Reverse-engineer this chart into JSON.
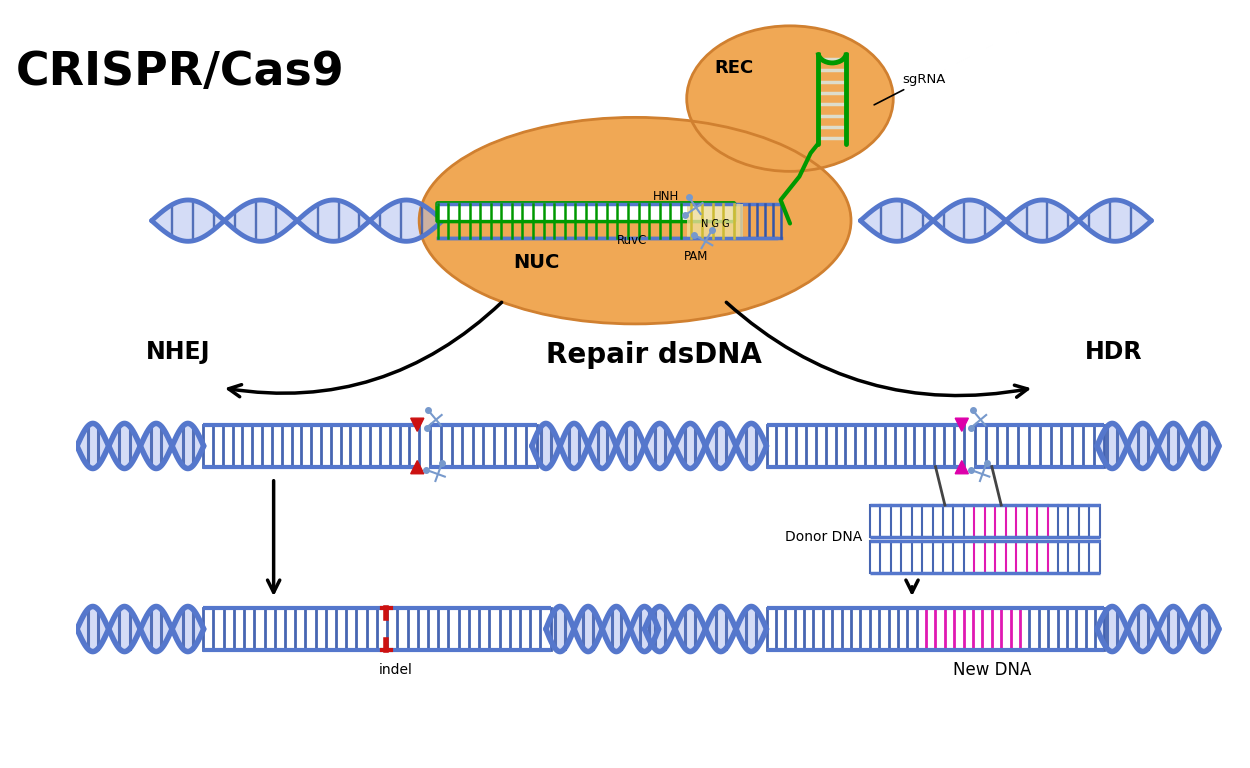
{
  "title": "CRISPR/Cas9",
  "bg_color": "#ffffff",
  "dna_color": "#5577cc",
  "dna_color2": "#3355aa",
  "dna_fill": "#aabbee",
  "green_color": "#009900",
  "orange_body": "#f0a855",
  "orange_edge": "#d08030",
  "magenta_color": "#dd00aa",
  "red_color": "#cc1111",
  "scissors_color": "#7799cc",
  "yellow_color": "#ccbb33",
  "donor_bg": "#aabbee",
  "label_nhej": "NHEJ",
  "label_hdr": "HDR",
  "label_repair": "Repair dsDNA",
  "label_indel": "indel",
  "label_newdna": "New DNA",
  "label_donor": "Donor DNA",
  "label_nuc": "NUC",
  "label_rec": "REC",
  "label_sgrna": "sgRNA",
  "label_hnh": "HNH",
  "label_ruvc": "RuvC",
  "label_pam": "PAM",
  "label_ngg": "N G G"
}
